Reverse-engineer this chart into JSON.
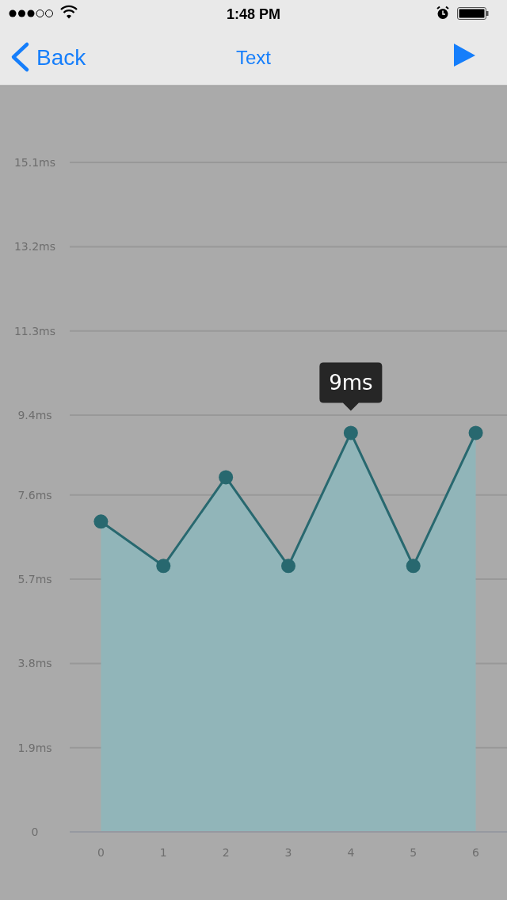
{
  "chart_data": {
    "type": "area",
    "title": "Text",
    "categories": [
      "0",
      "1",
      "2",
      "3",
      "4",
      "5",
      "6"
    ],
    "series": [
      {
        "color": "#91b5b9",
        "values": [
          7,
          6,
          8,
          6,
          9,
          6,
          9
        ]
      }
    ],
    "ylim": [
      0,
      16.8
    ],
    "yticks": [
      0,
      {
        "value": 1.9,
        "label": "1.9ms"
      },
      {
        "value": 3.8,
        "label": "3.8ms"
      },
      {
        "value": 5.7,
        "label": "5.7ms"
      },
      {
        "value": 7.6,
        "label": "7.6ms"
      },
      {
        "value": 9.4,
        "label": "9.4ms"
      },
      {
        "value": 11.3,
        "label": "11.3ms"
      },
      {
        "value": 13.2,
        "label": "13.2ms"
      },
      {
        "value": 15.1,
        "label": "15.1ms"
      }
    ],
    "grid": "y",
    "marker": "circle",
    "annotations": [
      "1:48 PM",
      "Back",
      {
        "text": "9ms",
        "x": "4",
        "y": 9
      }
    ]
  }
}
